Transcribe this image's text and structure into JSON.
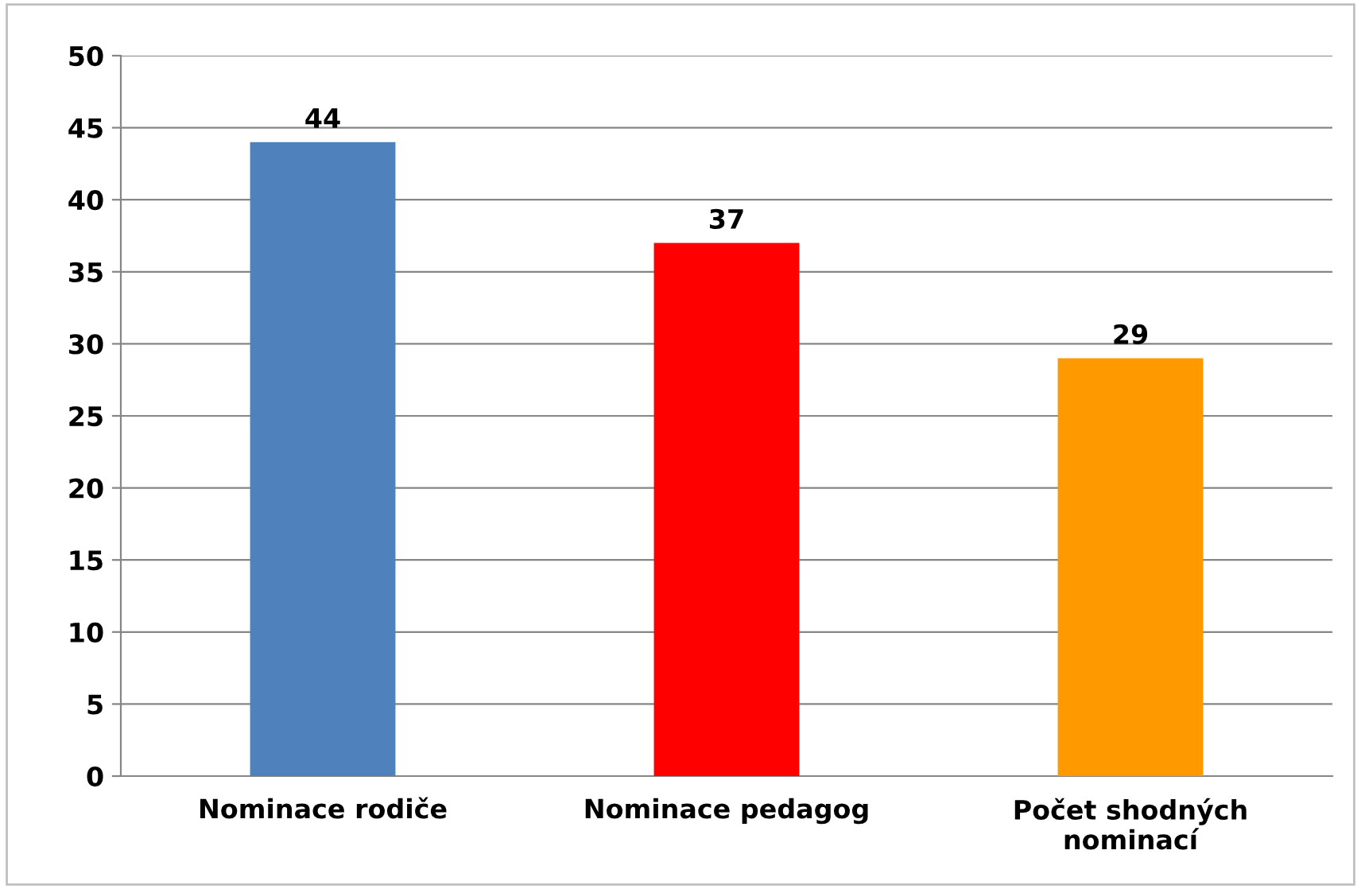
{
  "chart_data": {
    "type": "bar",
    "categories": [
      "Nominace rodiče",
      "Nominace pedagog",
      "Počet shodných nominací"
    ],
    "values": [
      44,
      37,
      29
    ],
    "colors": [
      "#4f81bd",
      "#ff0000",
      "#ff9900"
    ],
    "ylim": [
      0,
      50
    ],
    "yticks": [
      0,
      5,
      10,
      15,
      20,
      25,
      30,
      35,
      40,
      45,
      50
    ],
    "grid": "y",
    "data_labels": true
  }
}
